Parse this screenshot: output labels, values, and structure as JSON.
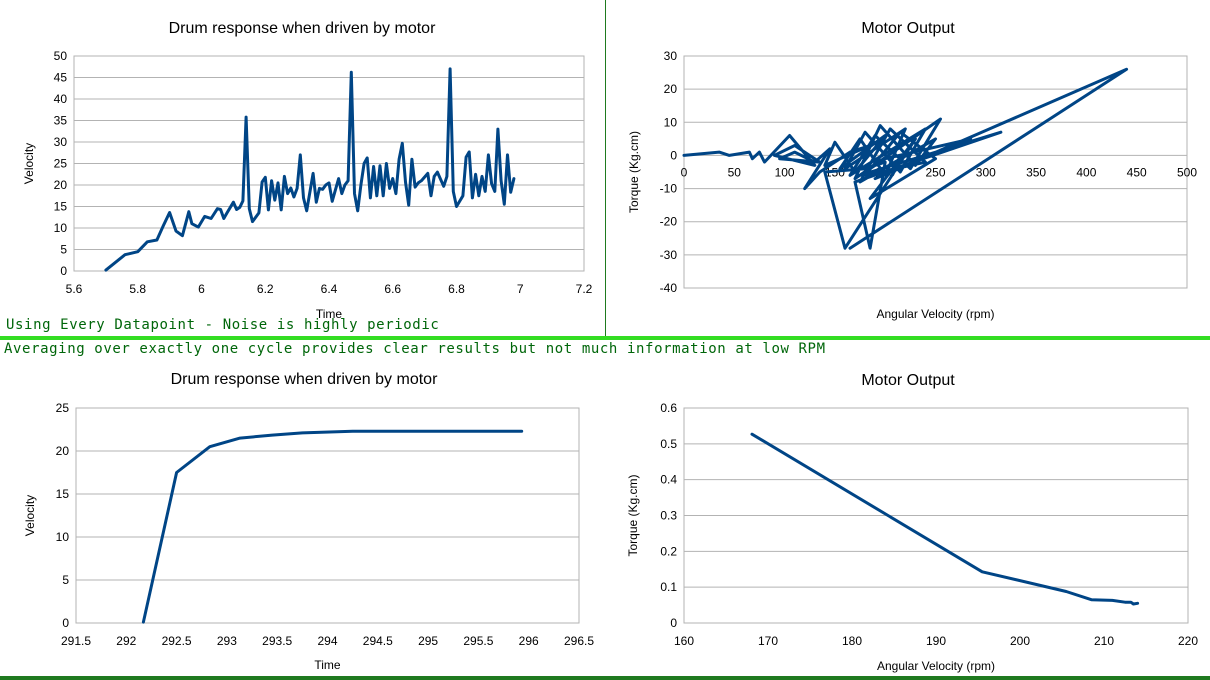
{
  "notes": {
    "top": "Using Every Datapoint - Noise is highly periodic",
    "bottom": "Averaging over exactly one cycle provides clear results but not much information at low RPM"
  },
  "colors": {
    "series": "#004586",
    "grid": "#b3b3b3",
    "divider": "#33dd22",
    "note": "#00660a"
  },
  "chart_data": [
    {
      "id": "c1",
      "type": "line",
      "title": "Drum response when driven by motor",
      "xlabel": "Time",
      "ylabel": "Velocity",
      "xlim": [
        5.6,
        7.2
      ],
      "ylim": [
        0,
        50
      ],
      "xticks": [
        "5.6",
        "5.8",
        "6",
        "6.2",
        "6.4",
        "6.6",
        "6.8",
        "7",
        "7.2"
      ],
      "yticks": [
        "0",
        "5",
        "10",
        "15",
        "20",
        "25",
        "30",
        "35",
        "40",
        "45",
        "50"
      ],
      "grid": true,
      "x": [
        5.7,
        5.76,
        5.8,
        5.83,
        5.86,
        5.88,
        5.9,
        5.92,
        5.94,
        5.96,
        5.97,
        5.99,
        6.01,
        6.03,
        6.05,
        6.06,
        6.07,
        6.08,
        6.1,
        6.11,
        6.12,
        6.13,
        6.14,
        6.15,
        6.16,
        6.18,
        6.19,
        6.2,
        6.21,
        6.22,
        6.23,
        6.24,
        6.25,
        6.26,
        6.27,
        6.28,
        6.29,
        6.3,
        6.31,
        6.32,
        6.33,
        6.35,
        6.36,
        6.37,
        6.38,
        6.39,
        6.4,
        6.41,
        6.43,
        6.44,
        6.45,
        6.46,
        6.47,
        6.48,
        6.49,
        6.5,
        6.51,
        6.52,
        6.53,
        6.54,
        6.55,
        6.56,
        6.57,
        6.58,
        6.59,
        6.6,
        6.61,
        6.62,
        6.63,
        6.64,
        6.65,
        6.66,
        6.67,
        6.68,
        6.69,
        6.71,
        6.72,
        6.73,
        6.74,
        6.76,
        6.77,
        6.78,
        6.79,
        6.8,
        6.82,
        6.83,
        6.84,
        6.85,
        6.86,
        6.87,
        6.88,
        6.89,
        6.9,
        6.91,
        6.92,
        6.93,
        6.94,
        6.95,
        6.96,
        6.97,
        6.98
      ],
      "y": [
        0.2,
        3.8,
        4.5,
        6.8,
        7.2,
        10.5,
        13.6,
        9.3,
        8.2,
        13.8,
        11.0,
        10.2,
        12.7,
        12.2,
        14.5,
        14.3,
        12.2,
        13.5,
        16.0,
        14.3,
        14.8,
        16.3,
        35.8,
        14.5,
        11.5,
        13.5,
        20.7,
        21.8,
        14.2,
        21.0,
        16.5,
        20.5,
        14.2,
        22.0,
        18.0,
        19.3,
        17.2,
        19.2,
        27.0,
        17.0,
        14.0,
        22.7,
        16.0,
        19.2,
        19.0,
        20.0,
        20.5,
        16.2,
        21.5,
        18.0,
        20.0,
        21.0,
        46.2,
        18.0,
        14.0,
        20.0,
        25.0,
        26.3,
        17.0,
        24.3,
        17.5,
        24.5,
        17.5,
        25.0,
        19.2,
        21.5,
        18.0,
        26.0,
        29.7,
        20.7,
        15.3,
        26.0,
        19.5,
        20.5,
        21.0,
        22.7,
        17.5,
        22.0,
        23.0,
        19.7,
        22.0,
        47.0,
        18.5,
        15.0,
        17.5,
        26.5,
        27.7,
        17.0,
        22.5,
        17.5,
        22.0,
        18.5,
        27.0,
        20.3,
        18.5,
        33.0,
        21.0,
        15.5,
        27.0,
        18.3,
        21.5
      ]
    },
    {
      "id": "c2",
      "type": "line",
      "title": "Motor Output",
      "xlabel": "Angular Velocity (rpm)",
      "ylabel": "Torque (Kg.cm)",
      "xlim": [
        0,
        500
      ],
      "ylim": [
        -40,
        30
      ],
      "xticks": [
        "0",
        "50",
        "100",
        "150",
        "200",
        "250",
        "300",
        "350",
        "400",
        "450",
        "500"
      ],
      "yticks": [
        "-40",
        "-30",
        "-20",
        "-10",
        "0",
        "10",
        "20",
        "30"
      ],
      "grid": true,
      "x": [
        0,
        35,
        45,
        65,
        68,
        75,
        80,
        105,
        130,
        90,
        110,
        135,
        95,
        110,
        130,
        145,
        120,
        135,
        165,
        185,
        140,
        150,
        170,
        200,
        155,
        175,
        200,
        220,
        160,
        180,
        215,
        240,
        165,
        190,
        225,
        255,
        170,
        195,
        230,
        250,
        175,
        205,
        240,
        180,
        215,
        250,
        185,
        230,
        160,
        140,
        180,
        200,
        185,
        170,
        315,
        175,
        200,
        285,
        190,
        440,
        165
      ],
      "y": [
        0,
        1,
        0,
        1,
        -1,
        1,
        -2,
        6,
        -3,
        0,
        3,
        -2,
        -1,
        1,
        -2,
        2,
        -10,
        -5,
        1,
        3,
        -3,
        4,
        -5,
        6,
        -4,
        5,
        -6,
        8,
        -4,
        7,
        -5,
        8,
        -6,
        6,
        -4,
        11,
        -7,
        9,
        -3,
        5,
        -8,
        8,
        -2,
        -6,
        7,
        -1,
        -13,
        5,
        -28,
        -5,
        -4,
        -2,
        -28,
        -8,
        7,
        -6,
        -1,
        5,
        -7,
        26,
        -28
      ]
    },
    {
      "id": "c3",
      "type": "line",
      "title": "Drum response when driven by motor",
      "xlabel": "Time",
      "ylabel": "Velocity",
      "xlim": [
        291.5,
        296.5
      ],
      "ylim": [
        0,
        25
      ],
      "xticks": [
        "291.5",
        "292",
        "292.5",
        "293",
        "293.5",
        "294",
        "294.5",
        "295",
        "295.5",
        "296",
        "296.5"
      ],
      "yticks": [
        "0",
        "5",
        "10",
        "15",
        "20",
        "25"
      ],
      "grid": true,
      "x": [
        292.17,
        292.5,
        292.83,
        293.13,
        293.45,
        293.75,
        294.25,
        294.9,
        295.93
      ],
      "y": [
        0.1,
        17.5,
        20.5,
        21.5,
        21.85,
        22.1,
        22.3,
        22.3,
        22.3
      ]
    },
    {
      "id": "c4",
      "type": "line",
      "title": "Motor Output",
      "xlabel": "Angular Velocity (rpm)",
      "ylabel": "Torque (Kg.cm)",
      "xlim": [
        160,
        220
      ],
      "ylim": [
        0,
        0.6
      ],
      "xticks": [
        "160",
        "170",
        "180",
        "190",
        "200",
        "210",
        "220"
      ],
      "yticks": [
        "0",
        "0.1",
        "0.2",
        "0.3",
        "0.4",
        "0.5",
        "0.6"
      ],
      "grid": true,
      "x": [
        168.1,
        195.5,
        205.5,
        208.5,
        211.0,
        212.5,
        213.2,
        213.5,
        214.0
      ],
      "y": [
        0.527,
        0.143,
        0.088,
        0.065,
        0.063,
        0.058,
        0.058,
        0.053,
        0.055
      ]
    }
  ]
}
